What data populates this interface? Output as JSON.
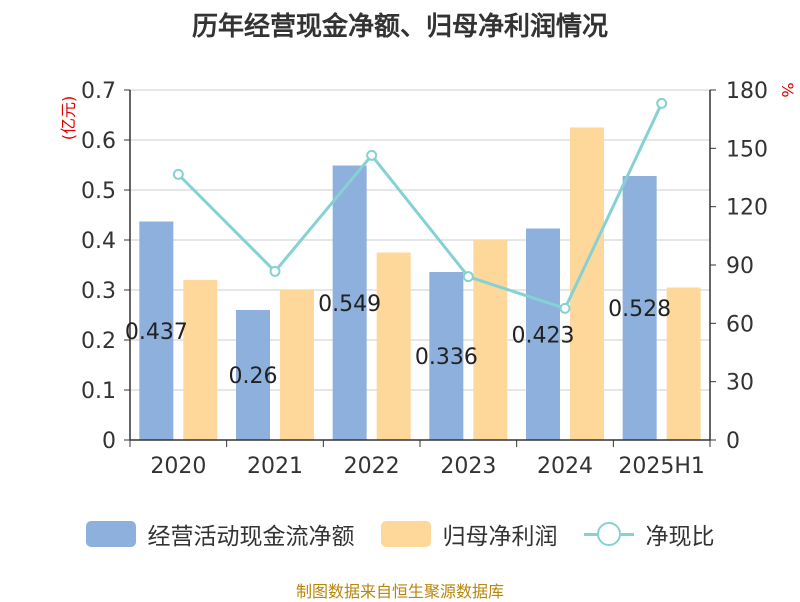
{
  "chart_data": {
    "type": "bar",
    "title": "历年经营现金净额、归母净利润情况",
    "categories": [
      "2020",
      "2021",
      "2022",
      "2023",
      "2024",
      "2025H1"
    ],
    "left_axis": {
      "unit_label": "(亿元)",
      "ylim": [
        0,
        0.7
      ],
      "ticks": [
        "0",
        "0.1",
        "0.2",
        "0.3",
        "0.4",
        "0.5",
        "0.6",
        "0.7"
      ]
    },
    "right_axis": {
      "unit_label": "%",
      "ylim": [
        0,
        180
      ],
      "ticks": [
        "0",
        "30",
        "60",
        "90",
        "120",
        "150",
        "180"
      ]
    },
    "series": [
      {
        "name": "经营活动现金流净额",
        "kind": "bar",
        "axis": "left",
        "color": "#8eb0dc",
        "values": [
          0.437,
          0.26,
          0.549,
          0.336,
          0.423,
          0.528
        ],
        "labels": [
          "0.437",
          "0.26",
          "0.549",
          "0.336",
          "0.423",
          "0.528"
        ]
      },
      {
        "name": "归母净利润",
        "kind": "bar",
        "axis": "left",
        "color": "#fed89b",
        "values": [
          0.32,
          0.3,
          0.375,
          0.4,
          0.625,
          0.305
        ]
      },
      {
        "name": "净现比",
        "kind": "line",
        "axis": "right",
        "color": "#86d1d3",
        "values": [
          136.6,
          86.7,
          146.4,
          84.0,
          67.7,
          173.1
        ]
      }
    ],
    "grid": true,
    "legend": "bottom"
  },
  "source": "制图数据来自恒生聚源数据库"
}
